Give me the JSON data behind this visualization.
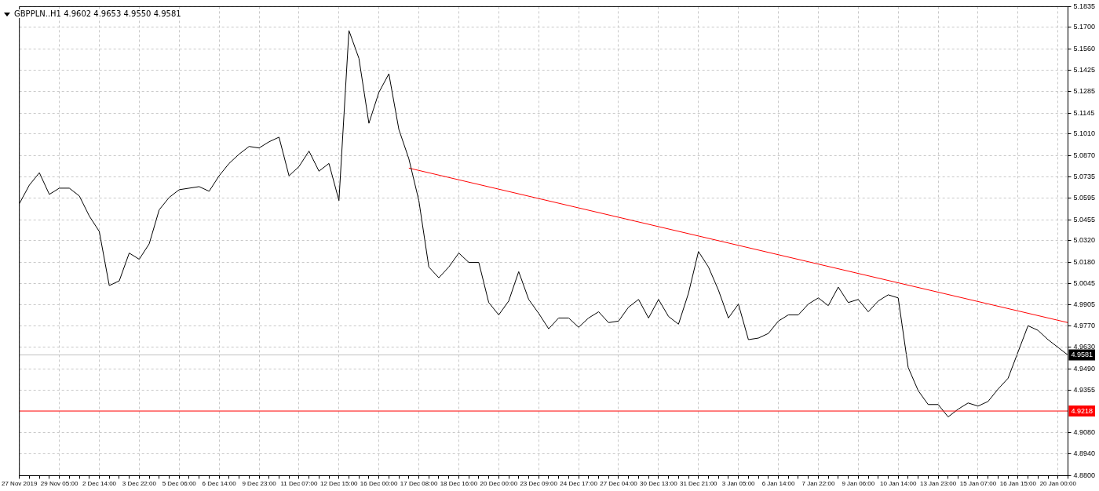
{
  "chart_data": {
    "type": "line",
    "title": "GBPPLN..H1 4.9602 4.9653 4.9550 4.9581",
    "categories": [
      "27 Nov 2019",
      null,
      null,
      null,
      "29 Nov 05:00",
      null,
      null,
      null,
      "2 Dec 14:00",
      null,
      null,
      null,
      "3 Dec 22:00",
      null,
      null,
      null,
      "5 Dec 06:00",
      null,
      null,
      null,
      "6 Dec 14:00",
      null,
      null,
      null,
      "9 Dec 23:00",
      null,
      null,
      null,
      "11 Dec 07:00",
      null,
      null,
      null,
      "12 Dec 15:00",
      null,
      null,
      null,
      "16 Dec 00:00",
      null,
      null,
      null,
      "17 Dec 08:00",
      null,
      null,
      null,
      "18 Dec 16:00",
      null,
      null,
      null,
      "20 Dec 00:00",
      null,
      null,
      null,
      "23 Dec 09:00",
      null,
      null,
      null,
      "24 Dec 17:00",
      null,
      null,
      null,
      "27 Dec 04:00",
      null,
      null,
      null,
      "30 Dec 13:00",
      null,
      null,
      null,
      "31 Dec 21:00",
      null,
      null,
      null,
      "3 Jan 05:00",
      null,
      null,
      null,
      "6 Jan 14:00",
      null,
      null,
      null,
      "7 Jan 22:00",
      null,
      null,
      null,
      "9 Jan 06:00",
      null,
      null,
      null,
      "10 Jan 14:00",
      null,
      null,
      null,
      "13 Jan 23:00",
      null,
      null,
      null,
      "15 Jan 07:00",
      null,
      null,
      null,
      "16 Jan 15:00",
      null,
      null,
      null,
      "20 Jan 00:00",
      null
    ],
    "series": [
      {
        "color": "#000000",
        "values": [
          5.056,
          5.068,
          5.076,
          5.062,
          5.066,
          5.066,
          5.061,
          5.048,
          5.038,
          5.003,
          5.006,
          5.024,
          5.02,
          5.03,
          5.052,
          5.06,
          5.065,
          5.066,
          5.067,
          5.064,
          5.074,
          5.082,
          5.088,
          5.093,
          5.092,
          5.096,
          5.099,
          5.074,
          5.08,
          5.09,
          5.077,
          5.082,
          5.058,
          5.168,
          5.15,
          5.108,
          5.128,
          5.14,
          5.104,
          5.085,
          5.058,
          5.015,
          5.008,
          5.015,
          5.024,
          5.018,
          5.018,
          4.992,
          4.984,
          4.993,
          5.012,
          4.994,
          4.985,
          4.975,
          4.982,
          4.982,
          4.976,
          4.982,
          4.986,
          4.979,
          4.98,
          4.989,
          4.994,
          4.982,
          4.994,
          4.983,
          4.978,
          4.998,
          5.025,
          5.015,
          5.0,
          4.982,
          4.991,
          4.968,
          4.969,
          4.972,
          4.98,
          4.984,
          4.984,
          4.991,
          4.995,
          4.99,
          5.002,
          4.992,
          4.994,
          4.986,
          4.993,
          4.997,
          4.995,
          4.95,
          4.935,
          4.926,
          4.926,
          4.918,
          4.923,
          4.927,
          4.925,
          4.928,
          4.936,
          4.943,
          4.96,
          4.977,
          4.974,
          4.968,
          4.963,
          4.958
        ]
      },
      {
        "type": "line",
        "color": "#ff0000",
        "values": [
          null,
          null,
          null,
          null,
          null,
          null,
          null,
          null,
          null,
          null,
          null,
          null,
          null,
          null,
          null,
          null,
          null,
          null,
          null,
          null,
          null,
          null,
          null,
          null,
          null,
          null,
          null,
          null,
          null,
          null,
          null,
          null,
          null,
          null,
          null,
          null,
          null,
          null,
          null,
          5.079,
          null,
          null,
          null,
          null,
          null,
          null,
          null,
          null,
          null,
          null,
          null,
          null,
          null,
          null,
          null,
          null,
          null,
          null,
          null,
          null,
          null,
          null,
          null,
          null,
          null,
          null,
          null,
          null,
          null,
          null,
          null,
          null,
          null,
          null,
          null,
          null,
          null,
          null,
          null,
          null,
          null,
          null,
          null,
          null,
          null,
          null,
          null,
          null,
          null,
          null,
          null,
          null,
          null,
          null,
          null,
          null,
          null,
          null,
          null,
          null,
          null,
          null,
          null,
          null,
          null,
          4.979
        ]
      }
    ],
    "ylim": [
      4.88,
      5.1835
    ],
    "yticks": [
      {
        "value": 4.88,
        "label": "4.8800"
      },
      {
        "value": 4.894,
        "label": "4.8940"
      },
      {
        "value": 4.908,
        "label": "4.9080"
      },
      {
        "value": 4.9355,
        "label": "4.9355"
      },
      {
        "value": 4.949,
        "label": "4.9490"
      },
      {
        "value": 4.963,
        "label": "4.9630"
      },
      {
        "value": 4.977,
        "label": "4.9770"
      },
      {
        "value": 4.9905,
        "label": "4.9905"
      },
      {
        "value": 5.0045,
        "label": "5.0045"
      },
      {
        "value": 5.018,
        "label": "5.0180"
      },
      {
        "value": 5.032,
        "label": "5.0320"
      },
      {
        "value": 5.0455,
        "label": "5.0455"
      },
      {
        "value": 5.0595,
        "label": "5.0595"
      },
      {
        "value": 5.0735,
        "label": "5.0735"
      },
      {
        "value": 5.087,
        "label": "5.0870"
      },
      {
        "value": 5.101,
        "label": "5.1010"
      },
      {
        "value": 5.1145,
        "label": "5.1145"
      },
      {
        "value": 5.1285,
        "label": "5.1285"
      },
      {
        "value": 5.1425,
        "label": "5.1425"
      },
      {
        "value": 5.156,
        "label": "5.1560"
      },
      {
        "value": 5.17,
        "label": "5.1700"
      },
      {
        "value": 5.1835,
        "label": "5.1835"
      }
    ],
    "ref_lines": [
      {
        "axis": "y",
        "value": 4.9581,
        "label": "4.9581",
        "color": "#c0c0c0"
      },
      {
        "axis": "y",
        "value": 4.9218,
        "label": "4.9218",
        "color": "#ff0000"
      }
    ],
    "grid": true,
    "legend": false,
    "marker": "none",
    "line_style": "solid"
  }
}
